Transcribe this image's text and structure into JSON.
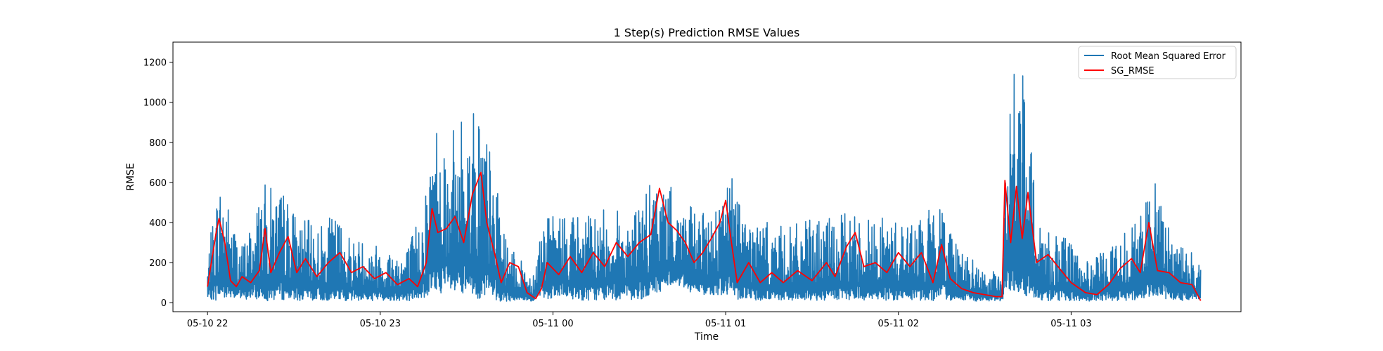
{
  "chart_data": {
    "type": "line",
    "title": "1 Step(s) Prediction RMSE Values",
    "xlabel": "Time",
    "ylabel": "RMSE",
    "x_start": "2024-05-10T22:00:00",
    "x_end": "2024-05-11T03:45:00",
    "xlim": [
      "2024-05-10T21:48:00",
      "2024-05-11T03:59:00"
    ],
    "xticks": [
      {
        "value": "2024-05-10T22:00:00",
        "label": "05-10 22"
      },
      {
        "value": "2024-05-10T23:00:00",
        "label": "05-10 23"
      },
      {
        "value": "2024-05-11T00:00:00",
        "label": "05-11 00"
      },
      {
        "value": "2024-05-11T01:00:00",
        "label": "05-11 01"
      },
      {
        "value": "2024-05-11T02:00:00",
        "label": "05-11 02"
      },
      {
        "value": "2024-05-11T03:00:00",
        "label": "05-11 03"
      }
    ],
    "ylim": [
      -45,
      1300
    ],
    "yticks": [
      0,
      200,
      400,
      600,
      800,
      1000,
      1200
    ],
    "grid": false,
    "legend": {
      "position": "top-right"
    },
    "series": [
      {
        "name": "Root Mean Squared Error",
        "color": "#1f77b4",
        "envelope": [
          [
            "2024-05-10T22:00:00",
            20,
            220
          ],
          [
            "2024-05-10T22:03:00",
            10,
            550
          ],
          [
            "2024-05-10T22:05:00",
            15,
            650
          ],
          [
            "2024-05-10T22:08:00",
            30,
            450
          ],
          [
            "2024-05-10T22:12:00",
            10,
            300
          ],
          [
            "2024-05-10T22:15:00",
            20,
            400
          ],
          [
            "2024-05-10T22:19:00",
            10,
            600
          ],
          [
            "2024-05-10T22:23:00",
            10,
            580
          ],
          [
            "2024-05-10T22:27:00",
            15,
            560
          ],
          [
            "2024-05-10T22:32:00",
            10,
            420
          ],
          [
            "2024-05-10T22:40:00",
            10,
            400
          ],
          [
            "2024-05-10T22:45:00",
            10,
            450
          ],
          [
            "2024-05-10T22:50:00",
            10,
            340
          ],
          [
            "2024-05-10T22:55:00",
            10,
            320
          ],
          [
            "2024-05-10T23:00:00",
            10,
            300
          ],
          [
            "2024-05-10T23:05:00",
            10,
            280
          ],
          [
            "2024-05-10T23:10:00",
            10,
            300
          ],
          [
            "2024-05-10T23:15:00",
            20,
            520
          ],
          [
            "2024-05-10T23:20:00",
            50,
            1010
          ],
          [
            "2024-05-10T23:24:00",
            40,
            820
          ],
          [
            "2024-05-10T23:28:00",
            20,
            950
          ],
          [
            "2024-05-10T23:32:00",
            20,
            990
          ],
          [
            "2024-05-10T23:35:00",
            20,
            1040
          ],
          [
            "2024-05-10T23:39:00",
            10,
            700
          ],
          [
            "2024-05-10T23:44:00",
            5,
            300
          ],
          [
            "2024-05-10T23:48:00",
            10,
            220
          ],
          [
            "2024-05-10T23:53:00",
            5,
            160
          ],
          [
            "2024-05-10T23:56:00",
            20,
            420
          ],
          [
            "2024-05-11T00:05:00",
            20,
            470
          ],
          [
            "2024-05-11T00:12:00",
            10,
            440
          ],
          [
            "2024-05-11T00:20:00",
            15,
            480
          ],
          [
            "2024-05-11T00:27:00",
            10,
            450
          ],
          [
            "2024-05-11T00:32:00",
            20,
            560
          ],
          [
            "2024-05-11T00:37:00",
            50,
            640
          ],
          [
            "2024-05-11T00:42:00",
            100,
            560
          ],
          [
            "2024-05-11T00:48:00",
            50,
            480
          ],
          [
            "2024-05-11T00:53:00",
            40,
            440
          ],
          [
            "2024-05-11T00:58:00",
            40,
            560
          ],
          [
            "2024-05-11T01:03:00",
            20,
            680
          ],
          [
            "2024-05-11T01:08:00",
            10,
            440
          ],
          [
            "2024-05-11T01:15:00",
            10,
            400
          ],
          [
            "2024-05-11T01:22:00",
            10,
            380
          ],
          [
            "2024-05-11T01:30:00",
            10,
            420
          ],
          [
            "2024-05-11T01:38:00",
            10,
            430
          ],
          [
            "2024-05-11T01:45:00",
            10,
            460
          ],
          [
            "2024-05-11T01:52:00",
            10,
            430
          ],
          [
            "2024-05-11T02:00:00",
            10,
            420
          ],
          [
            "2024-05-11T02:08:00",
            10,
            430
          ],
          [
            "2024-05-11T02:15:00",
            10,
            520
          ],
          [
            "2024-05-11T02:22:00",
            10,
            280
          ],
          [
            "2024-05-11T02:30:00",
            5,
            150
          ],
          [
            "2024-05-11T02:36:00",
            10,
            160
          ],
          [
            "2024-05-11T02:37:00",
            40,
            620
          ],
          [
            "2024-05-11T02:40:00",
            40,
            1240
          ],
          [
            "2024-05-11T02:43:00",
            30,
            1170
          ],
          [
            "2024-05-11T02:46:00",
            30,
            770
          ],
          [
            "2024-05-11T02:50:00",
            10,
            400
          ],
          [
            "2024-05-11T02:55:00",
            10,
            360
          ],
          [
            "2024-05-11T03:00:00",
            10,
            300
          ],
          [
            "2024-05-11T03:05:00",
            5,
            200
          ],
          [
            "2024-05-11T03:10:00",
            10,
            250
          ],
          [
            "2024-05-11T03:15:00",
            10,
            300
          ],
          [
            "2024-05-11T03:20:00",
            10,
            420
          ],
          [
            "2024-05-11T03:25:00",
            10,
            450
          ],
          [
            "2024-05-11T03:28:00",
            40,
            660
          ],
          [
            "2024-05-11T03:32:00",
            20,
            450
          ],
          [
            "2024-05-11T03:38:00",
            10,
            300
          ],
          [
            "2024-05-11T03:45:00",
            20,
            230
          ]
        ]
      },
      {
        "name": "SG_RMSE",
        "color": "#ff0000",
        "points": [
          [
            "2024-05-10T22:00:00",
            80
          ],
          [
            "2024-05-10T22:01:00",
            170
          ],
          [
            "2024-05-10T22:03:00",
            350
          ],
          [
            "2024-05-10T22:04:00",
            420
          ],
          [
            "2024-05-10T22:06:00",
            300
          ],
          [
            "2024-05-10T22:08:00",
            110
          ],
          [
            "2024-05-10T22:10:00",
            80
          ],
          [
            "2024-05-10T22:12:00",
            130
          ],
          [
            "2024-05-10T22:15:00",
            100
          ],
          [
            "2024-05-10T22:18:00",
            160
          ],
          [
            "2024-05-10T22:20:00",
            370
          ],
          [
            "2024-05-10T22:22:00",
            150
          ],
          [
            "2024-05-10T22:25:00",
            250
          ],
          [
            "2024-05-10T22:28:00",
            330
          ],
          [
            "2024-05-10T22:31:00",
            150
          ],
          [
            "2024-05-10T22:34:00",
            220
          ],
          [
            "2024-05-10T22:38:00",
            130
          ],
          [
            "2024-05-10T22:42:00",
            200
          ],
          [
            "2024-05-10T22:46:00",
            250
          ],
          [
            "2024-05-10T22:50:00",
            150
          ],
          [
            "2024-05-10T22:54:00",
            180
          ],
          [
            "2024-05-10T22:58:00",
            120
          ],
          [
            "2024-05-10T23:02:00",
            150
          ],
          [
            "2024-05-10T23:06:00",
            90
          ],
          [
            "2024-05-10T23:10:00",
            120
          ],
          [
            "2024-05-10T23:13:00",
            80
          ],
          [
            "2024-05-10T23:16:00",
            200
          ],
          [
            "2024-05-10T23:18:00",
            470
          ],
          [
            "2024-05-10T23:20:00",
            350
          ],
          [
            "2024-05-10T23:23:00",
            370
          ],
          [
            "2024-05-10T23:26:00",
            430
          ],
          [
            "2024-05-10T23:29:00",
            300
          ],
          [
            "2024-05-10T23:32:00",
            540
          ],
          [
            "2024-05-10T23:35:00",
            650
          ],
          [
            "2024-05-10T23:37:00",
            400
          ],
          [
            "2024-05-10T23:40:00",
            230
          ],
          [
            "2024-05-10T23:42:00",
            100
          ],
          [
            "2024-05-10T23:45:00",
            200
          ],
          [
            "2024-05-10T23:48:00",
            180
          ],
          [
            "2024-05-10T23:51:00",
            50
          ],
          [
            "2024-05-10T23:54:00",
            20
          ],
          [
            "2024-05-10T23:56:00",
            70
          ],
          [
            "2024-05-10T23:58:00",
            200
          ],
          [
            "2024-05-11T00:02:00",
            140
          ],
          [
            "2024-05-11T00:06:00",
            230
          ],
          [
            "2024-05-11T00:10:00",
            150
          ],
          [
            "2024-05-11T00:14:00",
            250
          ],
          [
            "2024-05-11T00:18:00",
            180
          ],
          [
            "2024-05-11T00:22:00",
            300
          ],
          [
            "2024-05-11T00:26:00",
            230
          ],
          [
            "2024-05-11T00:30:00",
            300
          ],
          [
            "2024-05-11T00:34:00",
            340
          ],
          [
            "2024-05-11T00:37:00",
            570
          ],
          [
            "2024-05-11T00:40:00",
            400
          ],
          [
            "2024-05-11T00:43:00",
            360
          ],
          [
            "2024-05-11T00:46:00",
            300
          ],
          [
            "2024-05-11T00:49:00",
            200
          ],
          [
            "2024-05-11T00:52:00",
            250
          ],
          [
            "2024-05-11T00:55:00",
            320
          ],
          [
            "2024-05-11T00:58:00",
            400
          ],
          [
            "2024-05-11T01:00:00",
            510
          ],
          [
            "2024-05-11T01:02:00",
            300
          ],
          [
            "2024-05-11T01:04:00",
            100
          ],
          [
            "2024-05-11T01:08:00",
            200
          ],
          [
            "2024-05-11T01:12:00",
            100
          ],
          [
            "2024-05-11T01:16:00",
            150
          ],
          [
            "2024-05-11T01:20:00",
            100
          ],
          [
            "2024-05-11T01:25:00",
            160
          ],
          [
            "2024-05-11T01:30:00",
            110
          ],
          [
            "2024-05-11T01:35:00",
            200
          ],
          [
            "2024-05-11T01:38:00",
            130
          ],
          [
            "2024-05-11T01:42:00",
            280
          ],
          [
            "2024-05-11T01:45:00",
            350
          ],
          [
            "2024-05-11T01:48:00",
            180
          ],
          [
            "2024-05-11T01:52:00",
            200
          ],
          [
            "2024-05-11T01:56:00",
            150
          ],
          [
            "2024-05-11T02:00:00",
            250
          ],
          [
            "2024-05-11T02:04:00",
            180
          ],
          [
            "2024-05-11T02:08:00",
            250
          ],
          [
            "2024-05-11T02:12:00",
            100
          ],
          [
            "2024-05-11T02:15:00",
            290
          ],
          [
            "2024-05-11T02:18:00",
            120
          ],
          [
            "2024-05-11T02:22:00",
            70
          ],
          [
            "2024-05-11T02:26:00",
            50
          ],
          [
            "2024-05-11T02:30:00",
            40
          ],
          [
            "2024-05-11T02:34:00",
            30
          ],
          [
            "2024-05-11T02:36:00",
            30
          ],
          [
            "2024-05-11T02:37:00",
            610
          ],
          [
            "2024-05-11T02:39:00",
            300
          ],
          [
            "2024-05-11T02:41:00",
            580
          ],
          [
            "2024-05-11T02:43:00",
            320
          ],
          [
            "2024-05-11T02:45:00",
            550
          ],
          [
            "2024-05-11T02:48:00",
            200
          ],
          [
            "2024-05-11T02:52:00",
            240
          ],
          [
            "2024-05-11T02:56:00",
            170
          ],
          [
            "2024-05-11T03:00:00",
            100
          ],
          [
            "2024-05-11T03:05:00",
            50
          ],
          [
            "2024-05-11T03:09:00",
            40
          ],
          [
            "2024-05-11T03:13:00",
            90
          ],
          [
            "2024-05-11T03:17:00",
            170
          ],
          [
            "2024-05-11T03:21:00",
            220
          ],
          [
            "2024-05-11T03:24:00",
            150
          ],
          [
            "2024-05-11T03:27:00",
            400
          ],
          [
            "2024-05-11T03:30:00",
            160
          ],
          [
            "2024-05-11T03:34:00",
            150
          ],
          [
            "2024-05-11T03:38:00",
            100
          ],
          [
            "2024-05-11T03:42:00",
            90
          ],
          [
            "2024-05-11T03:45:00",
            10
          ]
        ]
      }
    ]
  }
}
